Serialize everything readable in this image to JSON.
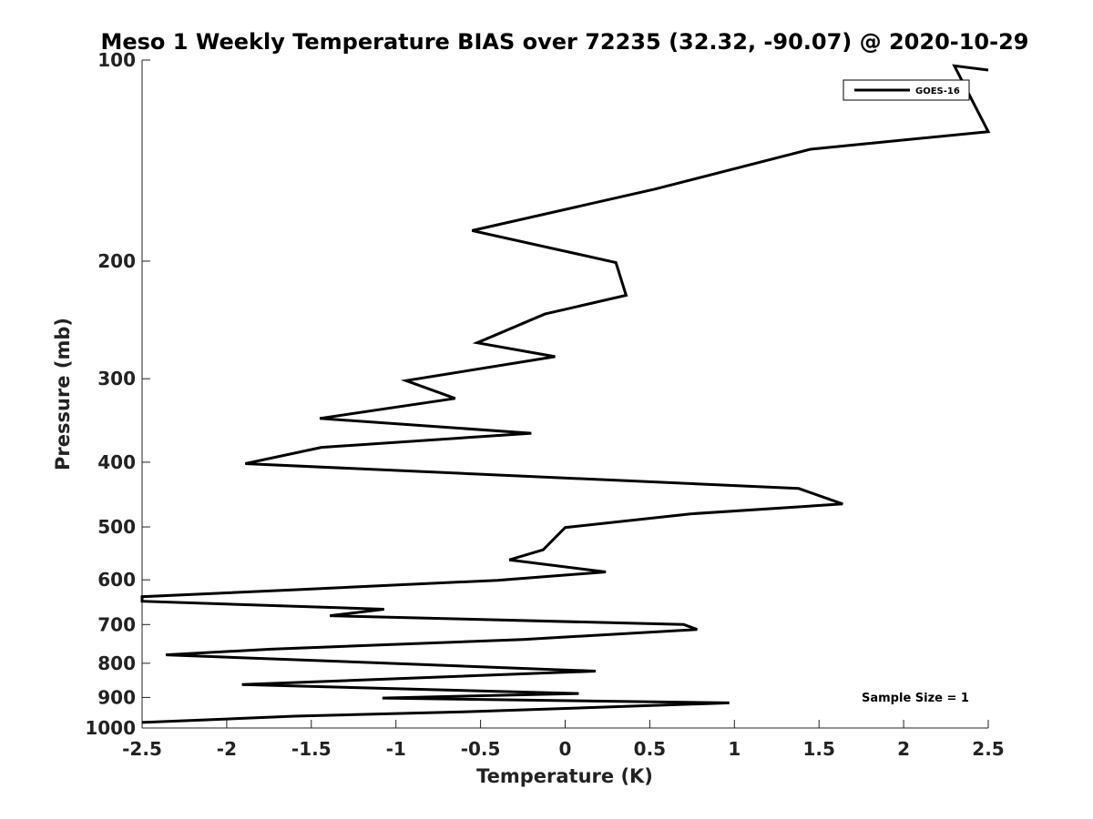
{
  "chart_data": {
    "type": "line",
    "title": "Meso 1 Weekly Temperature BIAS over 72235 (32.32, -90.07) @ 2020-10-29",
    "xlabel": "Temperature (K)",
    "ylabel": "Pressure (mb)",
    "xlim": [
      -2.5,
      2.5
    ],
    "ylim": [
      100,
      1000
    ],
    "yscale": "log",
    "yreverse": true,
    "x_ticks": [
      -2.5,
      -2,
      -1.5,
      -1,
      -0.5,
      0,
      0.5,
      1,
      1.5,
      2,
      2.5
    ],
    "x_tick_labels": [
      "-2.5",
      "-2",
      "-1.5",
      "-1",
      "-0.5",
      "0",
      "0.5",
      "1",
      "1.5",
      "2",
      "2.5"
    ],
    "y_ticks": [
      100,
      200,
      300,
      400,
      500,
      600,
      700,
      800,
      900,
      1000
    ],
    "y_tick_labels": [
      "100",
      "200",
      "300",
      "400",
      "500",
      "600",
      "700",
      "800",
      "900",
      "1000"
    ],
    "legend": {
      "location": "top-right",
      "entries": [
        "GOES-16"
      ]
    },
    "annotation": "Sample Size = 1",
    "grid": false,
    "series": [
      {
        "name": "GOES-16",
        "color": "#000000",
        "points": [
          {
            "x": 2.5,
            "y": 103.5
          },
          {
            "x": 2.3,
            "y": 102.0
          },
          {
            "x": 2.5,
            "y": 128
          },
          {
            "x": 1.45,
            "y": 136
          },
          {
            "x": 0.53,
            "y": 156
          },
          {
            "x": -0.55,
            "y": 180
          },
          {
            "x": 0.3,
            "y": 201
          },
          {
            "x": 0.36,
            "y": 225
          },
          {
            "x": -0.12,
            "y": 240
          },
          {
            "x": -0.52,
            "y": 265
          },
          {
            "x": -0.06,
            "y": 278
          },
          {
            "x": -0.94,
            "y": 302
          },
          {
            "x": -0.65,
            "y": 321
          },
          {
            "x": -1.45,
            "y": 344
          },
          {
            "x": -0.2,
            "y": 362
          },
          {
            "x": -1.44,
            "y": 380
          },
          {
            "x": -1.89,
            "y": 402
          },
          {
            "x": 1.38,
            "y": 438
          },
          {
            "x": 1.64,
            "y": 462
          },
          {
            "x": 0.74,
            "y": 478
          },
          {
            "x": 0.0,
            "y": 501
          },
          {
            "x": -0.13,
            "y": 541
          },
          {
            "x": -0.33,
            "y": 560
          },
          {
            "x": 0.24,
            "y": 584
          },
          {
            "x": -0.4,
            "y": 601
          },
          {
            "x": -1.6,
            "y": 621
          },
          {
            "x": -2.5,
            "y": 636
          },
          {
            "x": -2.5,
            "y": 646
          },
          {
            "x": -1.07,
            "y": 664
          },
          {
            "x": -1.39,
            "y": 679
          },
          {
            "x": 0.7,
            "y": 700
          },
          {
            "x": 0.78,
            "y": 712
          },
          {
            "x": -0.25,
            "y": 737
          },
          {
            "x": -1.74,
            "y": 762
          },
          {
            "x": -2.36,
            "y": 777
          },
          {
            "x": 0.18,
            "y": 822
          },
          {
            "x": -1.91,
            "y": 861
          },
          {
            "x": 0.08,
            "y": 888
          },
          {
            "x": -1.08,
            "y": 902
          },
          {
            "x": 0.97,
            "y": 917
          },
          {
            "x": -0.6,
            "y": 946
          },
          {
            "x": -1.6,
            "y": 960
          },
          {
            "x": -2.5,
            "y": 981
          }
        ]
      }
    ]
  }
}
